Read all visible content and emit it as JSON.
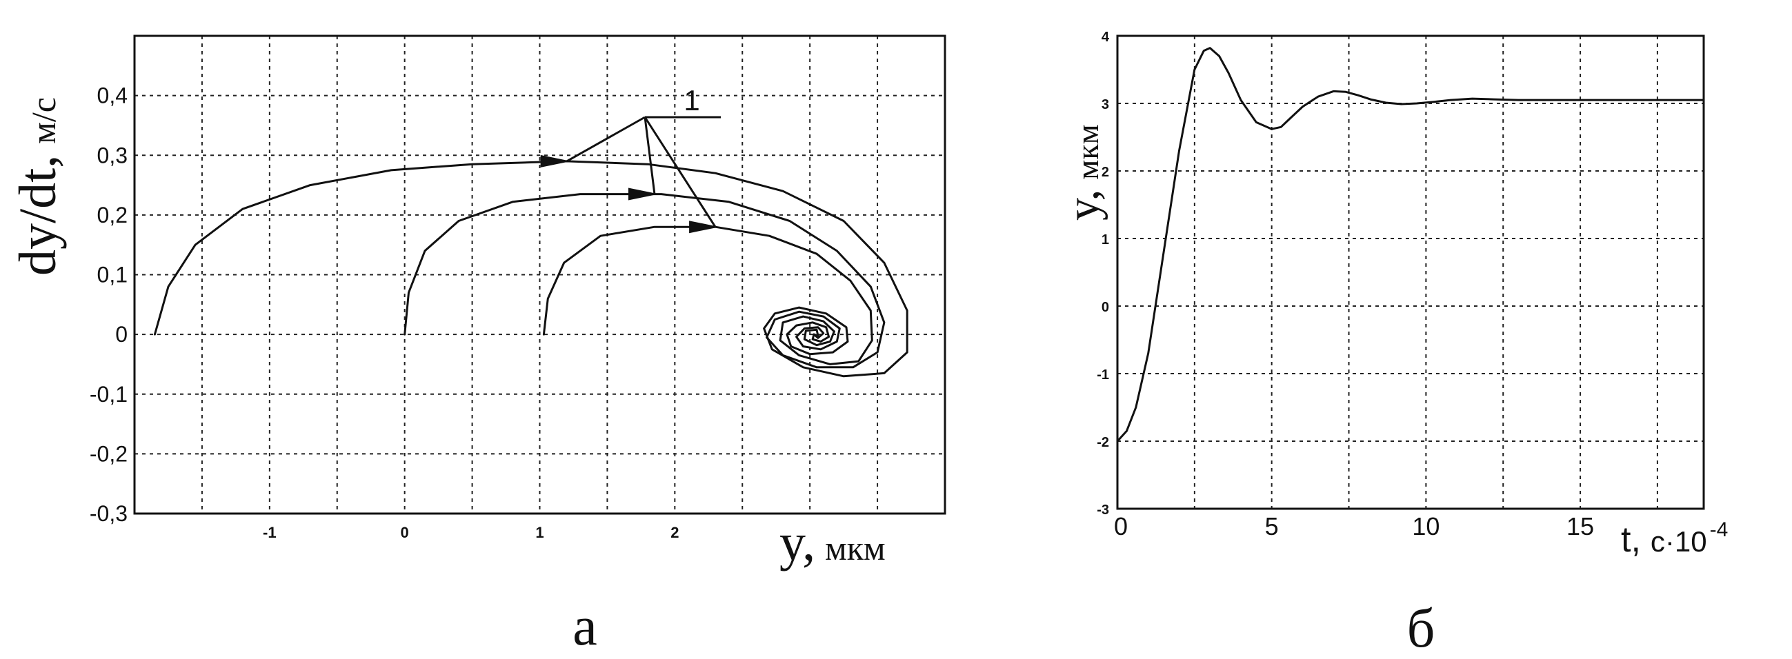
{
  "chart_data": [
    {
      "panel_label": "а",
      "type": "line",
      "xlabel": {
        "var": "y,",
        "unit": "мкм"
      },
      "ylabel": {
        "var": "dy/dt,",
        "unit": "м/с"
      },
      "xlim": [
        -2,
        4
      ],
      "ylim": [
        -0.3,
        0.5
      ],
      "x_ticks": [
        -1,
        0,
        1,
        2
      ],
      "x_tick_labels": [
        "-1",
        "0",
        "1",
        "2"
      ],
      "y_ticks": [
        -0.3,
        -0.2,
        -0.1,
        0,
        0.1,
        0.2,
        0.3,
        0.4
      ],
      "y_tick_labels": [
        "-0,3",
        "-0,2",
        "-0,1",
        "0",
        "0,1",
        "0,2",
        "0,3",
        "0,4"
      ],
      "grid": true,
      "annotation": "1",
      "series": [
        {
          "points": [
            [
              -1.85,
              0
            ],
            [
              -1.75,
              0.08
            ],
            [
              -1.55,
              0.15
            ],
            [
              -1.2,
              0.21
            ],
            [
              -0.7,
              0.25
            ],
            [
              -0.1,
              0.275
            ],
            [
              0.5,
              0.285
            ],
            [
              1.2,
              0.29
            ],
            [
              1.8,
              0.285
            ],
            [
              2.3,
              0.27
            ],
            [
              2.8,
              0.24
            ],
            [
              3.25,
              0.19
            ],
            [
              3.55,
              0.12
            ],
            [
              3.72,
              0.04
            ],
            [
              3.72,
              -0.03
            ],
            [
              3.55,
              -0.065
            ],
            [
              3.25,
              -0.07
            ],
            [
              2.95,
              -0.055
            ],
            [
              2.72,
              -0.025
            ],
            [
              2.66,
              0.01
            ],
            [
              2.74,
              0.035
            ],
            [
              2.92,
              0.045
            ],
            [
              3.12,
              0.035
            ],
            [
              3.27,
              0.012
            ],
            [
              3.28,
              -0.012
            ],
            [
              3.17,
              -0.03
            ],
            [
              3.0,
              -0.033
            ],
            [
              2.86,
              -0.02
            ],
            [
              2.83,
              0.0
            ],
            [
              2.9,
              0.015
            ],
            [
              3.02,
              0.02
            ],
            [
              3.12,
              0.012
            ],
            [
              3.14,
              -0.004
            ],
            [
              3.08,
              -0.012
            ],
            [
              3.02,
              -0.008
            ],
            [
              3.03,
              0.0
            ]
          ]
        },
        {
          "points": [
            [
              0.0,
              0
            ],
            [
              0.03,
              0.07
            ],
            [
              0.15,
              0.14
            ],
            [
              0.4,
              0.19
            ],
            [
              0.8,
              0.222
            ],
            [
              1.3,
              0.235
            ],
            [
              1.9,
              0.235
            ],
            [
              2.4,
              0.222
            ],
            [
              2.85,
              0.19
            ],
            [
              3.2,
              0.14
            ],
            [
              3.45,
              0.08
            ],
            [
              3.55,
              0.02
            ],
            [
              3.5,
              -0.03
            ],
            [
              3.32,
              -0.055
            ],
            [
              3.05,
              -0.055
            ],
            [
              2.8,
              -0.035
            ],
            [
              2.68,
              -0.005
            ],
            [
              2.74,
              0.025
            ],
            [
              2.92,
              0.038
            ],
            [
              3.1,
              0.03
            ],
            [
              3.22,
              0.01
            ],
            [
              3.2,
              -0.012
            ],
            [
              3.08,
              -0.025
            ],
            [
              2.95,
              -0.02
            ],
            [
              2.9,
              -0.004
            ],
            [
              2.96,
              0.01
            ],
            [
              3.06,
              0.012
            ],
            [
              3.1,
              0.002
            ],
            [
              3.06,
              -0.006
            ],
            [
              3.03,
              0.0
            ]
          ]
        },
        {
          "points": [
            [
              1.03,
              0
            ],
            [
              1.06,
              0.06
            ],
            [
              1.18,
              0.12
            ],
            [
              1.45,
              0.165
            ],
            [
              1.85,
              0.18
            ],
            [
              2.3,
              0.18
            ],
            [
              2.7,
              0.165
            ],
            [
              3.05,
              0.135
            ],
            [
              3.3,
              0.09
            ],
            [
              3.45,
              0.04
            ],
            [
              3.46,
              -0.01
            ],
            [
              3.36,
              -0.045
            ],
            [
              3.15,
              -0.05
            ],
            [
              2.92,
              -0.035
            ],
            [
              2.78,
              -0.01
            ],
            [
              2.8,
              0.02
            ],
            [
              2.95,
              0.03
            ],
            [
              3.1,
              0.022
            ],
            [
              3.18,
              0.005
            ],
            [
              3.15,
              -0.012
            ],
            [
              3.05,
              -0.018
            ],
            [
              2.96,
              -0.008
            ],
            [
              2.97,
              0.006
            ],
            [
              3.05,
              0.008
            ],
            [
              3.06,
              -0.002
            ],
            [
              3.03,
              0.0
            ]
          ]
        }
      ]
    },
    {
      "panel_label": "б",
      "type": "line",
      "xlabel": {
        "var": "t,",
        "unit": "с·10",
        "exp": "-4"
      },
      "ylabel": {
        "var": "y,",
        "unit": "мкм"
      },
      "xlim": [
        0,
        19
      ],
      "ylim": [
        -3,
        4
      ],
      "x_ticks": [
        0,
        5,
        10,
        15
      ],
      "x_tick_labels": [
        "0",
        "5",
        "10",
        "15"
      ],
      "y_ticks": [
        -3,
        -2,
        -1,
        0,
        1,
        2,
        3,
        4
      ],
      "y_tick_labels": [
        "-3",
        "-2",
        "-1",
        "0",
        "1",
        "2",
        "3",
        "4"
      ],
      "grid": true,
      "series": [
        {
          "x": [
            0,
            0.3,
            0.6,
            1.0,
            1.5,
            2.0,
            2.5,
            2.8,
            3.0,
            3.3,
            3.6,
            4.0,
            4.5,
            5.0,
            5.3,
            5.6,
            6.0,
            6.5,
            7.0,
            7.4,
            7.8,
            8.2,
            8.7,
            9.2,
            9.7,
            10.2,
            10.8,
            11.5,
            12.2,
            13.0,
            14.0,
            15.0,
            16.0,
            17.0,
            18.0,
            19.0
          ],
          "y": [
            -2.0,
            -1.85,
            -1.5,
            -0.7,
            0.8,
            2.3,
            3.5,
            3.78,
            3.82,
            3.7,
            3.45,
            3.05,
            2.72,
            2.62,
            2.65,
            2.78,
            2.95,
            3.1,
            3.18,
            3.17,
            3.12,
            3.06,
            3.01,
            2.99,
            3.0,
            3.02,
            3.05,
            3.07,
            3.06,
            3.05,
            3.05,
            3.05,
            3.05,
            3.05,
            3.05,
            3.05
          ]
        }
      ]
    }
  ]
}
